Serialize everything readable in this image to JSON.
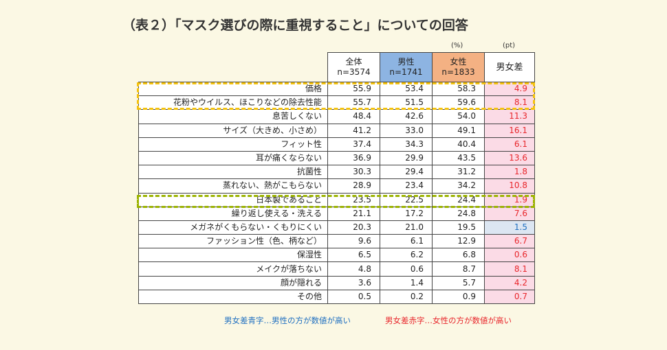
{
  "title": "（表２）「マスク選びの際に重視すること」についての回答",
  "unit_pct": "(%)",
  "unit_pt": "(pt)",
  "headers": {
    "all": {
      "label": "全体",
      "n": "n=3574"
    },
    "male": {
      "label": "男性",
      "n": "n=1741"
    },
    "female": {
      "label": "女性",
      "n": "n=1833"
    },
    "diff": "男女差"
  },
  "colors": {
    "male_header": "#8db4e2",
    "female_header": "#f4b183",
    "diff_red": "#e8262b",
    "diff_blue": "#1f6fc0",
    "highlight_yellow": "#f4c20d",
    "highlight_green": "#9cb400"
  },
  "rows": [
    {
      "label": "価格",
      "all": "55.9",
      "male": "53.4",
      "female": "58.3",
      "diff": "4.9",
      "diff_color": "red"
    },
    {
      "label": "花粉やウイルス、ほこりなどの除去性能",
      "all": "55.7",
      "male": "51.5",
      "female": "59.6",
      "diff": "8.1",
      "diff_color": "red"
    },
    {
      "label": "息苦しくない",
      "all": "48.4",
      "male": "42.6",
      "female": "54.0",
      "diff": "11.3",
      "diff_color": "red"
    },
    {
      "label": "サイズ（大きめ、小さめ）",
      "all": "41.2",
      "male": "33.0",
      "female": "49.1",
      "diff": "16.1",
      "diff_color": "red"
    },
    {
      "label": "フィット性",
      "all": "37.4",
      "male": "34.3",
      "female": "40.4",
      "diff": "6.1",
      "diff_color": "red"
    },
    {
      "label": "耳が痛くならない",
      "all": "36.9",
      "male": "29.9",
      "female": "43.5",
      "diff": "13.6",
      "diff_color": "red"
    },
    {
      "label": "抗菌性",
      "all": "30.3",
      "male": "29.4",
      "female": "31.2",
      "diff": "1.8",
      "diff_color": "red"
    },
    {
      "label": "蒸れない、熱がこもらない",
      "all": "28.9",
      "male": "23.4",
      "female": "34.2",
      "diff": "10.8",
      "diff_color": "red"
    },
    {
      "label": "日本製であること",
      "all": "23.5",
      "male": "22.5",
      "female": "24.4",
      "diff": "1.9",
      "diff_color": "red"
    },
    {
      "label": "繰り返し使える・洗える",
      "all": "21.1",
      "male": "17.2",
      "female": "24.8",
      "diff": "7.6",
      "diff_color": "red"
    },
    {
      "label": "メガネがくもらない・くもりにくい",
      "all": "20.3",
      "male": "21.0",
      "female": "19.5",
      "diff": "1.5",
      "diff_color": "blue"
    },
    {
      "label": "ファッション性（色、柄など）",
      "all": "9.6",
      "male": "6.1",
      "female": "12.9",
      "diff": "6.7",
      "diff_color": "red"
    },
    {
      "label": "保湿性",
      "all": "6.5",
      "male": "6.2",
      "female": "6.8",
      "diff": "0.6",
      "diff_color": "red"
    },
    {
      "label": "メイクが落ちない",
      "all": "4.8",
      "male": "0.6",
      "female": "8.7",
      "diff": "8.1",
      "diff_color": "red"
    },
    {
      "label": "顔が隠れる",
      "all": "3.6",
      "male": "1.4",
      "female": "5.7",
      "diff": "4.2",
      "diff_color": "red"
    },
    {
      "label": "その他",
      "all": "0.5",
      "male": "0.2",
      "female": "0.9",
      "diff": "0.7",
      "diff_color": "red"
    }
  ],
  "legend_blue": "男女差青字…男性の方が数値が高い",
  "legend_red": "男女差赤字…女性の方が数値が高い"
}
